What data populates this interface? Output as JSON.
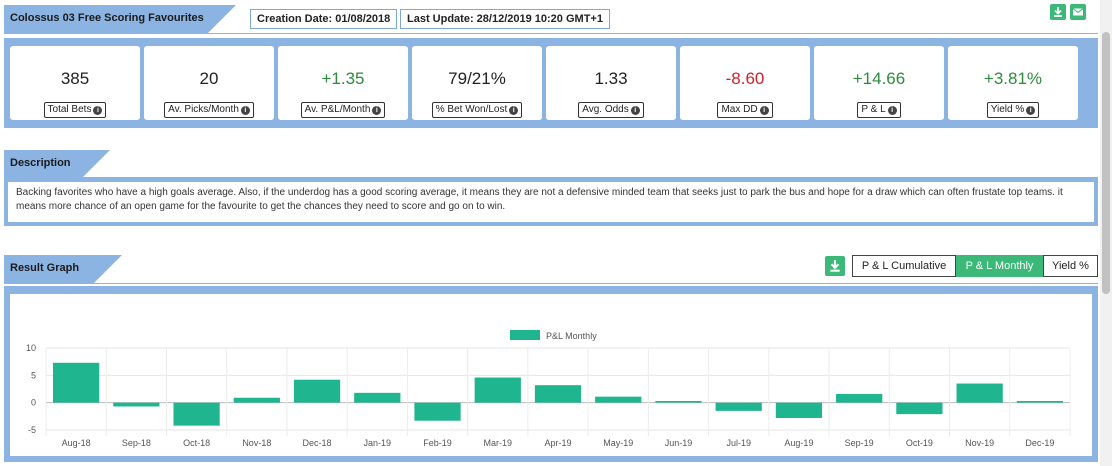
{
  "header": {
    "title": "Colossus 03 Free Scoring Favourites",
    "creation_date": "Creation Date: 01/08/2018",
    "last_update": "Last Update: 28/12/2019 10:20 GMT+1",
    "download_icon": "download-icon",
    "email_icon": "envelope-icon"
  },
  "stats": [
    {
      "value": "385",
      "label": "Total Bets",
      "tone": "neutral"
    },
    {
      "value": "20",
      "label": "Av. Picks/Month",
      "tone": "neutral"
    },
    {
      "value": "+1.35",
      "label": "Av. P&L/Month",
      "tone": "pos"
    },
    {
      "value": "79/21%",
      "label": "% Bet Won/Lost",
      "tone": "neutral"
    },
    {
      "value": "1.33",
      "label": "Avg. Odds",
      "tone": "neutral"
    },
    {
      "value": "-8.60",
      "label": "Max DD",
      "tone": "neg"
    },
    {
      "value": "+14.66",
      "label": "P & L",
      "tone": "pos"
    },
    {
      "value": "+3.81%",
      "label": "Yield %",
      "tone": "pos"
    }
  ],
  "description": {
    "title": "Description",
    "text": "Backing favorites who have a high goals average. Also, if the underdog has a good scoring average, it means they are not a defensive minded team that seeks just to park the bus and hope for a draw which can often frustate top teams. it means more chance of an open game for the favourite to get the chances they need to score and go on to win."
  },
  "result_graph": {
    "title": "Result Graph",
    "download_icon": "download-icon",
    "toggles": [
      {
        "label": "P & L Cumulative",
        "active": false
      },
      {
        "label": "P & L Monthly",
        "active": true
      },
      {
        "label": "Yield %",
        "active": false
      }
    ]
  },
  "colors": {
    "accent": "#3cb878",
    "panel": "#8cb4e3",
    "bar": "#1fb58f",
    "positive": "#2d8a3e",
    "negative": "#d0202a"
  },
  "chart_data": {
    "type": "bar",
    "legend": "P&L Monthly",
    "legend_position": "top-center",
    "grid": true,
    "categories": [
      "Aug-18",
      "Sep-18",
      "Oct-18",
      "Nov-18",
      "Dec-18",
      "Jan-19",
      "Feb-19",
      "Mar-19",
      "Apr-19",
      "May-19",
      "Jun-19",
      "Jul-19",
      "Aug-19",
      "Sep-19",
      "Oct-19",
      "Nov-19",
      "Dec-19"
    ],
    "series": [
      {
        "name": "P&L Monthly",
        "values": [
          7.3,
          -0.7,
          -4.2,
          0.9,
          4.2,
          1.8,
          -3.3,
          4.6,
          3.2,
          1.1,
          0.3,
          -1.5,
          -2.8,
          1.6,
          -2.1,
          3.5,
          0.3
        ]
      }
    ],
    "yticks": [
      10,
      5,
      0,
      -5
    ],
    "ylim": [
      -5,
      10
    ]
  }
}
